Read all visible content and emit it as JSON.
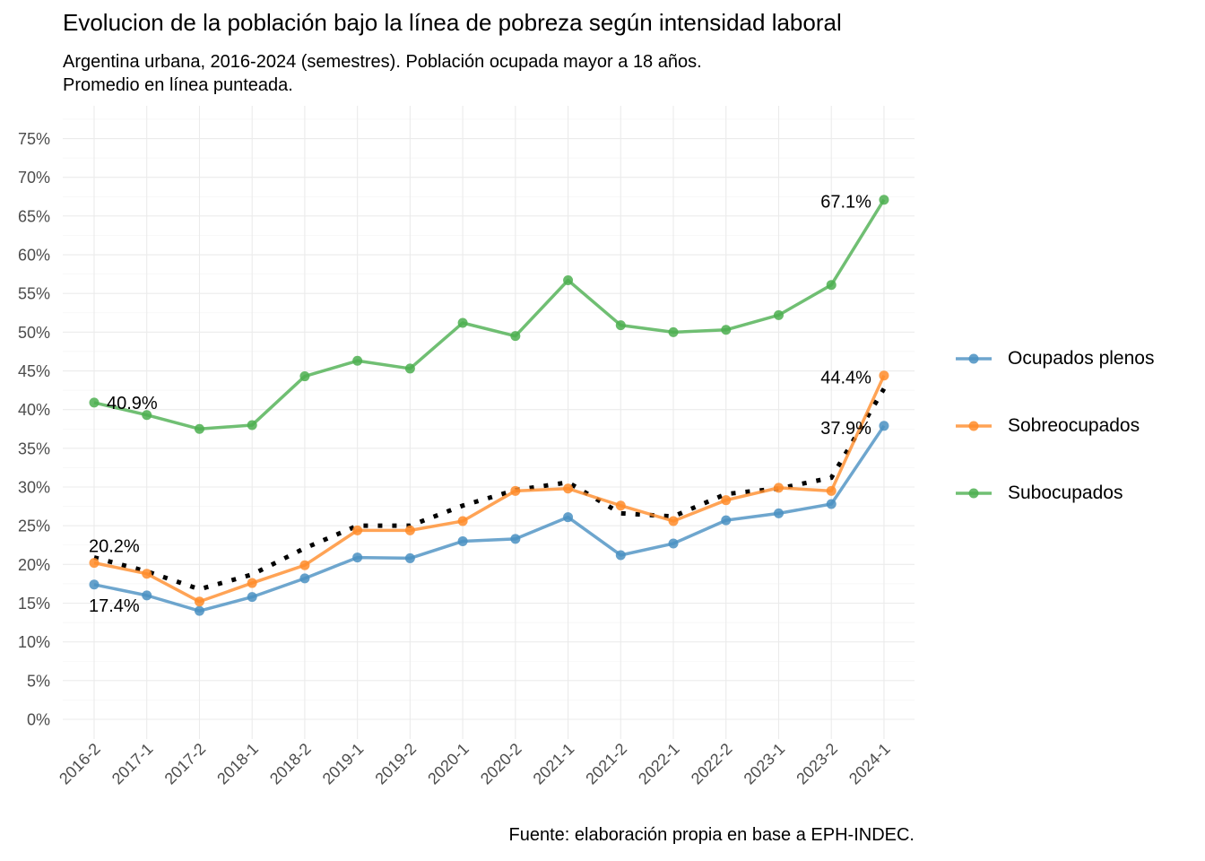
{
  "chart_data": {
    "type": "line",
    "title": "Evolucion de la población bajo la línea de pobreza según intensidad laboral",
    "subtitle": [
      "Argentina urbana, 2016-2024 (semestres). Población ocupada mayor a 18 años.",
      "Promedio en línea punteada."
    ],
    "caption": "Fuente: elaboración propia en base a EPH-INDEC.",
    "xlabel": "",
    "ylabel": "",
    "categories": [
      "2016-2",
      "2017-1",
      "2017-2",
      "2018-1",
      "2018-2",
      "2019-1",
      "2019-2",
      "2020-1",
      "2020-2",
      "2021-1",
      "2021-2",
      "2022-1",
      "2022-2",
      "2023-1",
      "2023-2",
      "2024-1"
    ],
    "ylim": [
      0,
      75
    ],
    "yticks": [
      "0%",
      "5%",
      "10%",
      "15%",
      "20%",
      "25%",
      "30%",
      "35%",
      "40%",
      "45%",
      "50%",
      "55%",
      "60%",
      "65%",
      "70%",
      "75%"
    ],
    "grid": true,
    "legend_position": "right",
    "series": [
      {
        "name": "Ocupados plenos",
        "color": "#4A90C2",
        "values": [
          17.4,
          16.0,
          14.0,
          15.8,
          18.2,
          20.9,
          20.8,
          23.0,
          23.3,
          26.1,
          21.2,
          22.7,
          25.7,
          26.6,
          27.8,
          37.9
        ]
      },
      {
        "name": "Sobreocupados",
        "color": "#FF8C2A",
        "values": [
          20.2,
          18.8,
          15.2,
          17.6,
          19.9,
          24.4,
          24.4,
          25.6,
          29.5,
          29.8,
          27.6,
          25.6,
          28.3,
          29.9,
          29.5,
          44.4
        ]
      },
      {
        "name": "Subocupados",
        "color": "#4CAF50",
        "values": [
          40.9,
          39.3,
          37.5,
          38.0,
          44.3,
          46.3,
          45.3,
          51.2,
          49.5,
          56.7,
          50.9,
          50.0,
          50.3,
          52.2,
          56.1,
          67.1
        ]
      }
    ],
    "average": {
      "style": "dotted",
      "color": "#000000",
      "values": [
        20.9,
        19.1,
        16.8,
        18.7,
        22.1,
        25.0,
        25.0,
        27.6,
        29.6,
        30.6,
        26.6,
        26.2,
        29.1,
        29.8,
        31.2,
        42.7
      ]
    },
    "annotations": [
      {
        "text": "40.9%",
        "series": "Subocupados",
        "index": 0
      },
      {
        "text": "20.2%",
        "series": "Sobreocupados",
        "index": 0
      },
      {
        "text": "17.4%",
        "series": "Ocupados plenos",
        "index": 0
      },
      {
        "text": "67.1%",
        "series": "Subocupados",
        "index": 15
      },
      {
        "text": "44.4%",
        "series": "Sobreocupados",
        "index": 15
      },
      {
        "text": "37.9%",
        "series": "Ocupados plenos",
        "index": 15
      }
    ]
  }
}
